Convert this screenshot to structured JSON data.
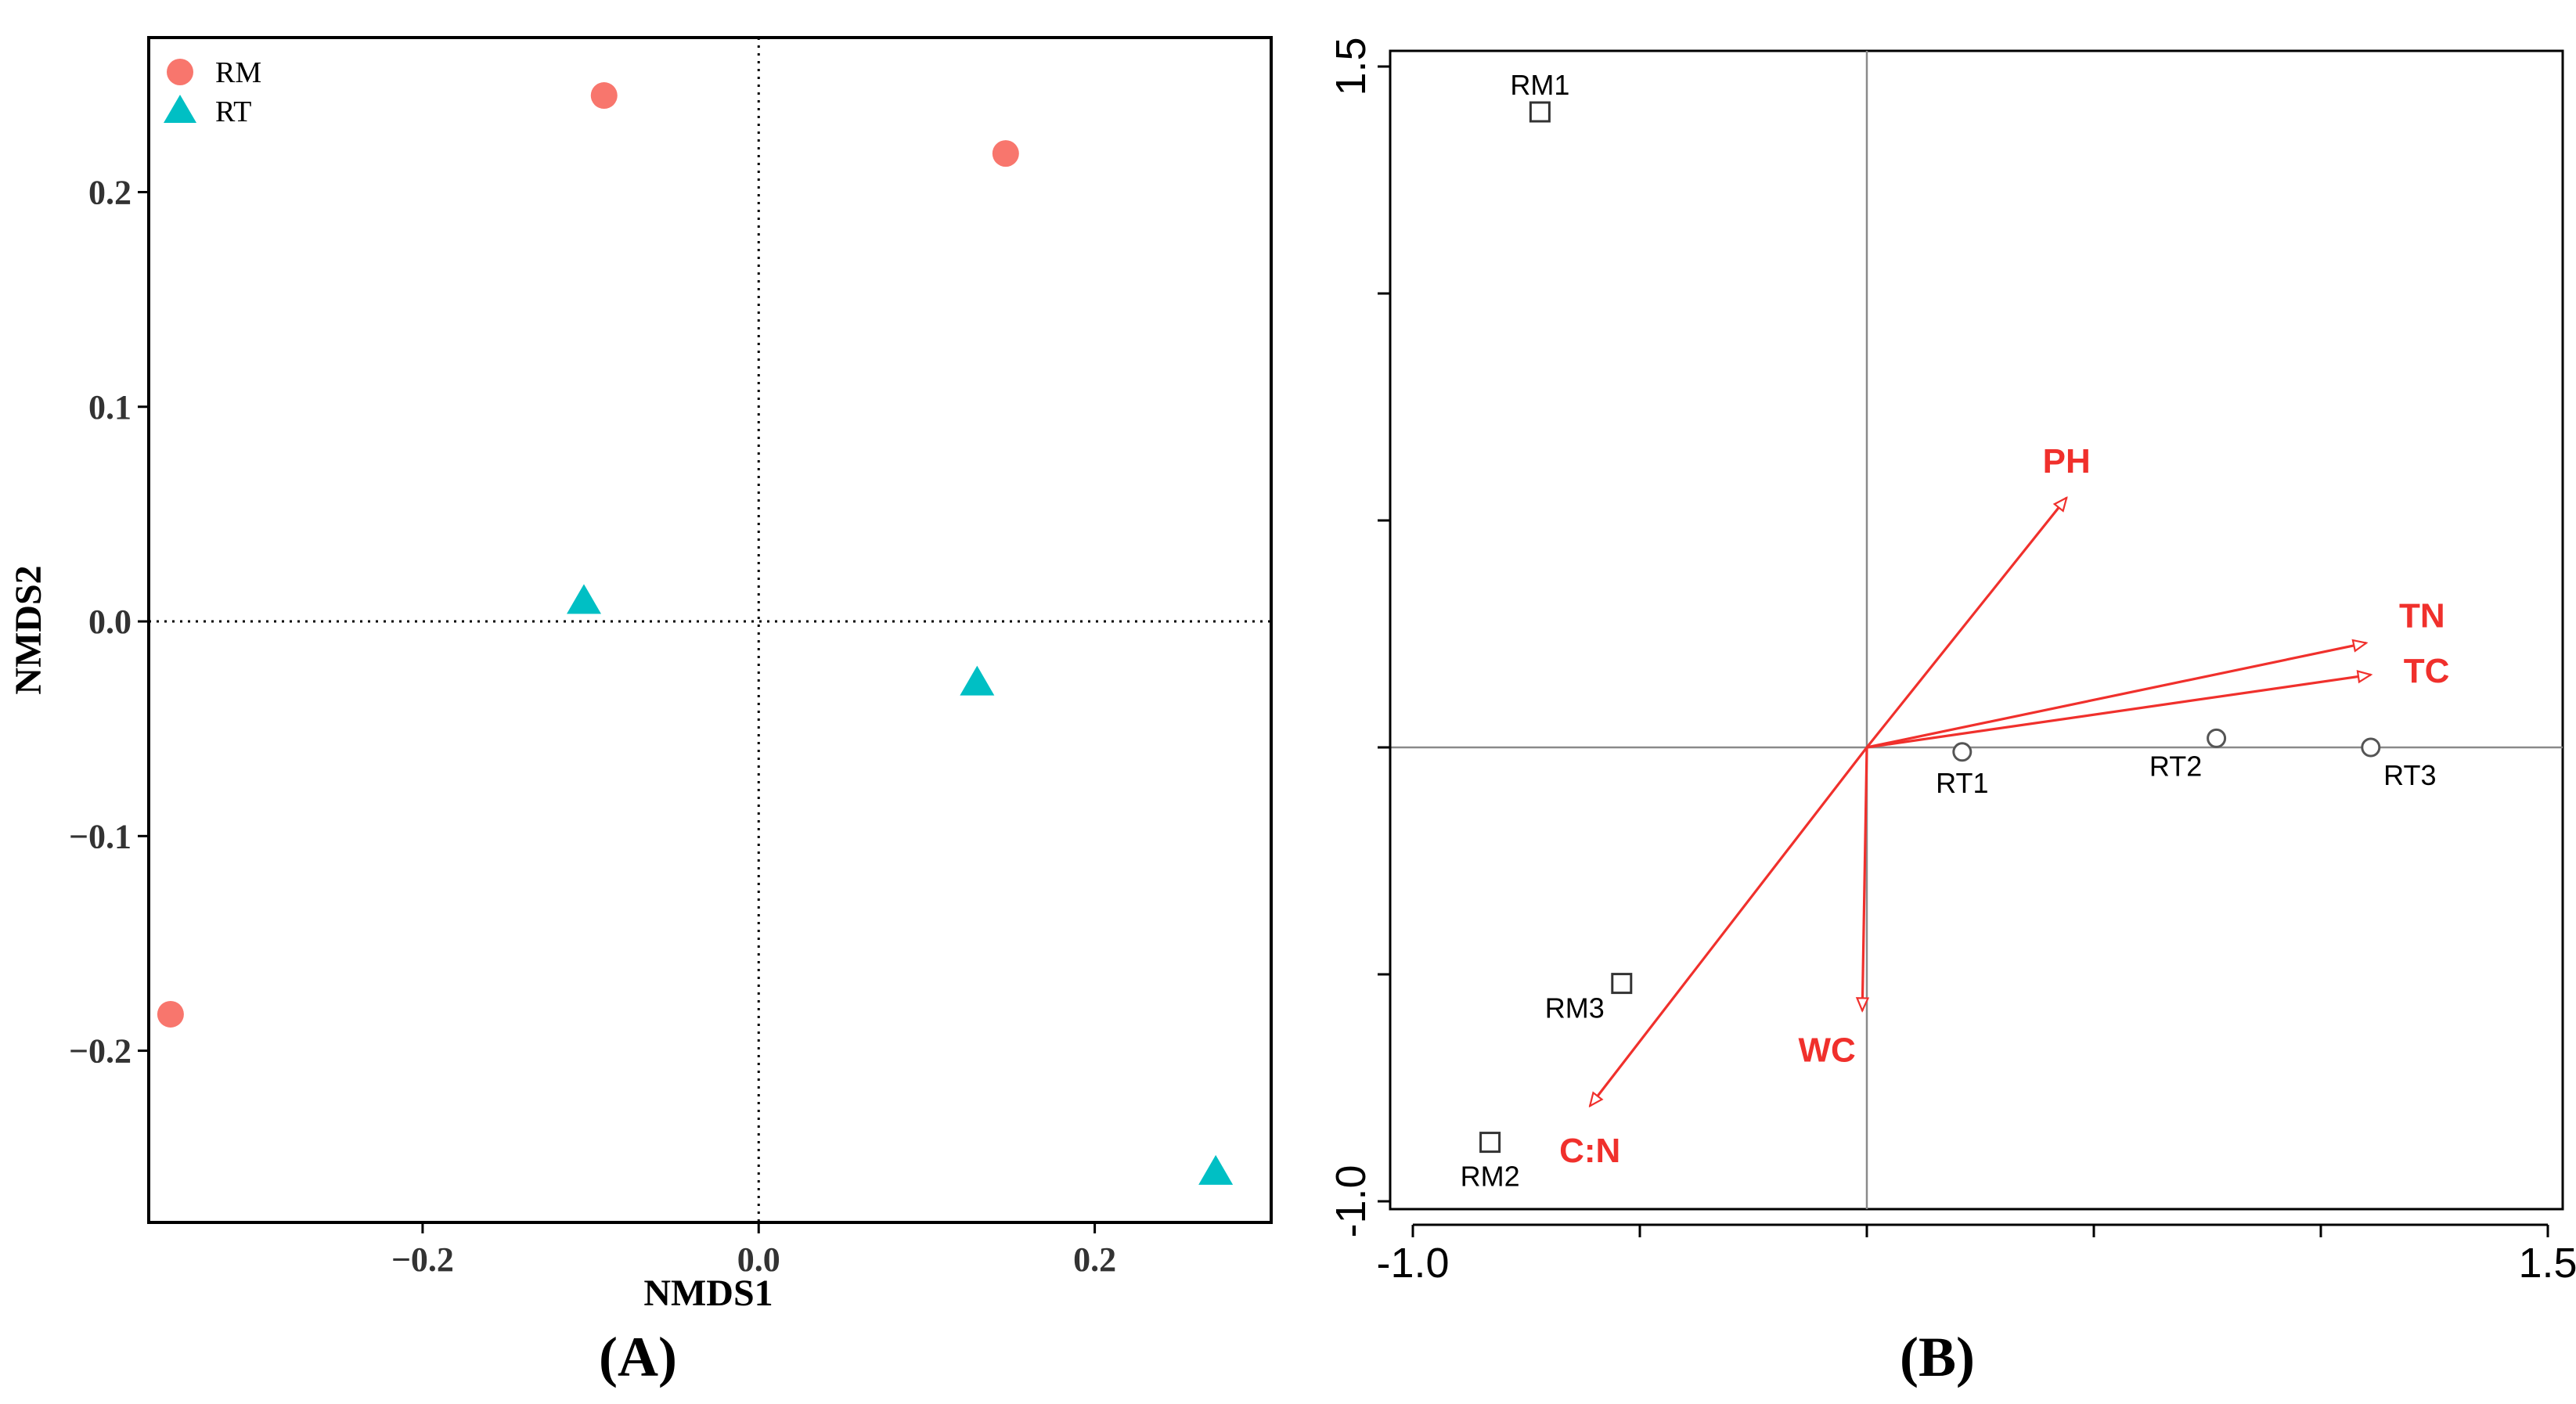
{
  "chart_data": [
    {
      "type": "scatter",
      "panel_label": "(A)",
      "xlabel": "NMDS1",
      "ylabel": "NMDS2",
      "xlim": [
        -0.363,
        0.305
      ],
      "ylim": [
        -0.28,
        0.272
      ],
      "x_ticks": [
        -0.2,
        0.0,
        0.2
      ],
      "x_tick_labels": [
        "−0.2",
        "0.0",
        "0.2"
      ],
      "y_ticks": [
        -0.2,
        -0.1,
        0.0,
        0.1,
        0.2
      ],
      "y_tick_labels": [
        "−0.2",
        "−0.1",
        "0.0",
        "0.1",
        "0.2"
      ],
      "reference_lines": {
        "x": 0.0,
        "y": 0.0,
        "style": "dotted"
      },
      "grid": false,
      "legend_position": "top-left",
      "series": [
        {
          "name": "RM",
          "marker": "circle",
          "color": "#F8766D",
          "points": [
            [
              -0.092,
              0.245
            ],
            [
              0.147,
              0.218
            ],
            [
              -0.35,
              -0.183
            ]
          ]
        },
        {
          "name": "RT",
          "marker": "triangle",
          "color": "#00BFC4",
          "points": [
            [
              -0.104,
              0.009
            ],
            [
              0.13,
              -0.029
            ],
            [
              0.272,
              -0.257
            ]
          ]
        }
      ]
    },
    {
      "type": "scatter",
      "subtype": "ordination-biplot",
      "panel_label": "(B)",
      "xlim": [
        -1.0,
        1.5
      ],
      "ylim": [
        -1.0,
        1.5
      ],
      "x_tick_labels": [
        "-1.0",
        "1.5"
      ],
      "y_tick_labels": [
        "-1.0",
        "1.5"
      ],
      "x_ticks": [
        -1.0,
        -0.5,
        0.0,
        0.5,
        1.0,
        1.5
      ],
      "y_ticks": [
        -1.0,
        -0.5,
        0.0,
        0.5,
        1.0,
        1.5
      ],
      "reference_lines": {
        "x": 0.0,
        "y": 0.0,
        "style": "solid"
      },
      "arrow_color": "#F0302C",
      "sites": [
        {
          "label": "RM1",
          "marker": "square",
          "x": -0.72,
          "y": 1.4
        },
        {
          "label": "RM2",
          "marker": "square",
          "x": -0.83,
          "y": -0.87
        },
        {
          "label": "RM3",
          "marker": "square",
          "x": -0.54,
          "y": -0.52
        },
        {
          "label": "RT1",
          "marker": "circle",
          "x": 0.21,
          "y": -0.01
        },
        {
          "label": "RT2",
          "marker": "circle",
          "x": 0.77,
          "y": 0.02
        },
        {
          "label": "RT3",
          "marker": "circle",
          "x": 1.11,
          "y": 0.0
        }
      ],
      "vectors": [
        {
          "label": "PH",
          "x": 0.44,
          "y": 0.55
        },
        {
          "label": "TN",
          "x": 1.1,
          "y": 0.23
        },
        {
          "label": "TC",
          "x": 1.11,
          "y": 0.16
        },
        {
          "label": "WC",
          "x": -0.01,
          "y": -0.58
        },
        {
          "label": "C:N",
          "x": -0.61,
          "y": -0.79
        }
      ]
    }
  ]
}
